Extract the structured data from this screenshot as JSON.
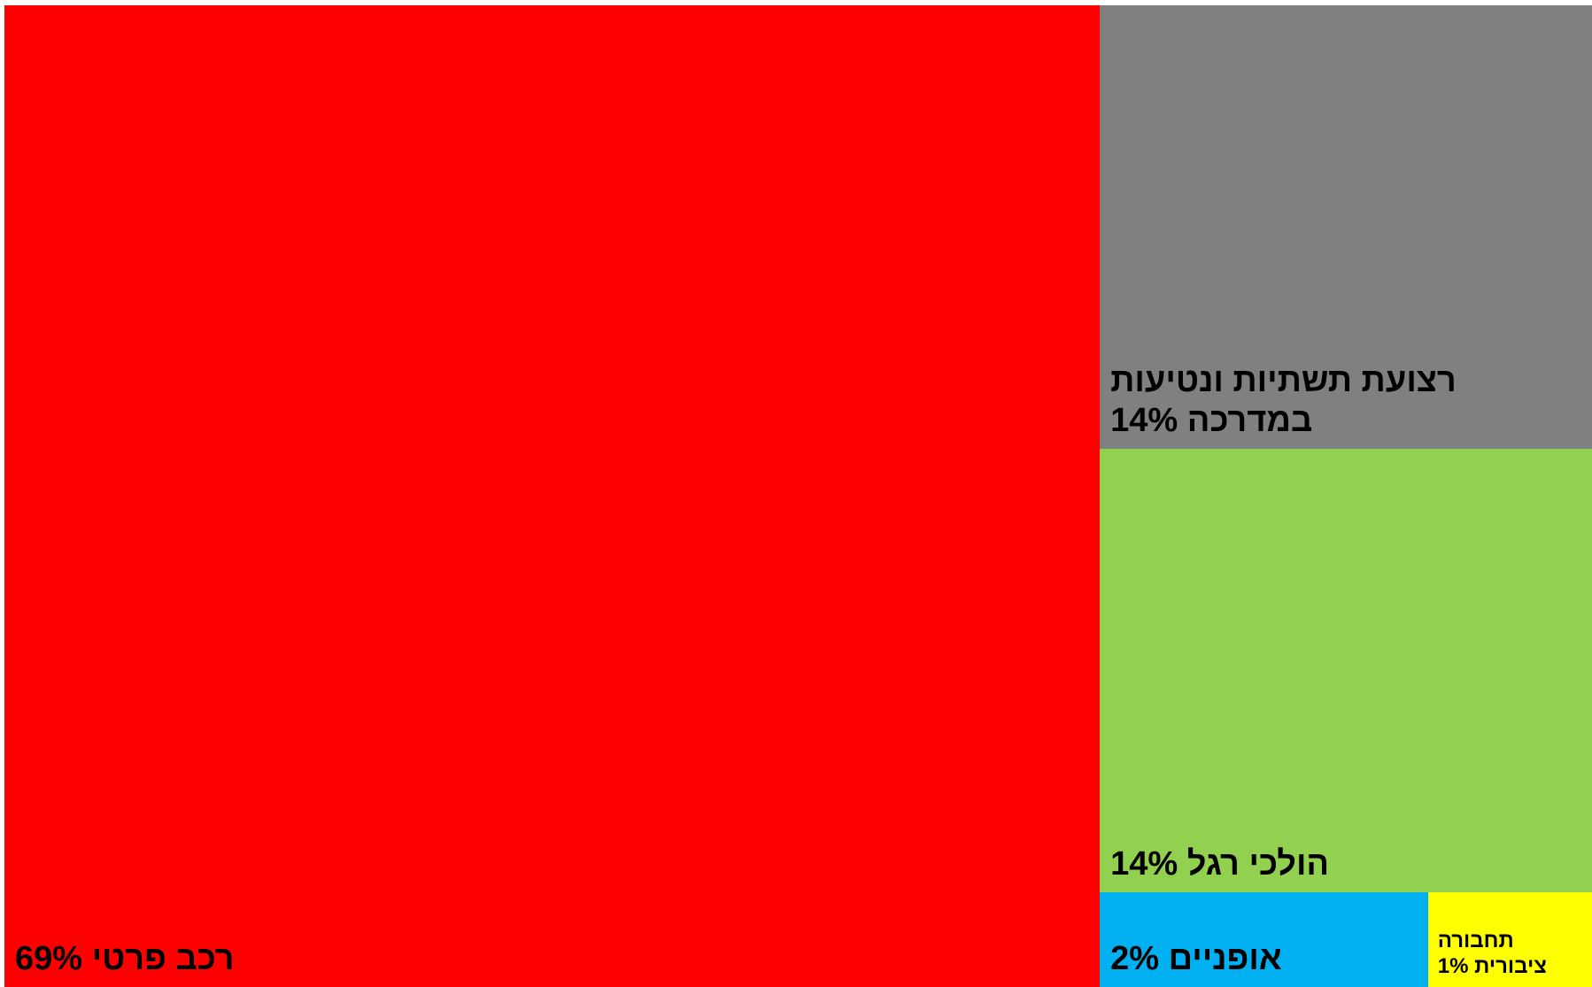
{
  "chart_data": {
    "type": "treemap",
    "items": [
      {
        "label_lines": [
          "רכב פרטי 69%"
        ],
        "value": 69,
        "color": "#ff0000"
      },
      {
        "label_lines": [
          "רצועת תשתיות ונטיעות",
          "במדרכה 14%"
        ],
        "value": 14,
        "color": "#808080"
      },
      {
        "label_lines": [
          "הולכי רגל 14%"
        ],
        "value": 14,
        "color": "#92d050"
      },
      {
        "label_lines": [
          "אופניים 2%"
        ],
        "value": 2,
        "color": "#00b0f0"
      },
      {
        "label_lines": [
          "תחבורה",
          "ציבורית 1%"
        ],
        "value": 1,
        "color": "#ffff00"
      }
    ]
  }
}
